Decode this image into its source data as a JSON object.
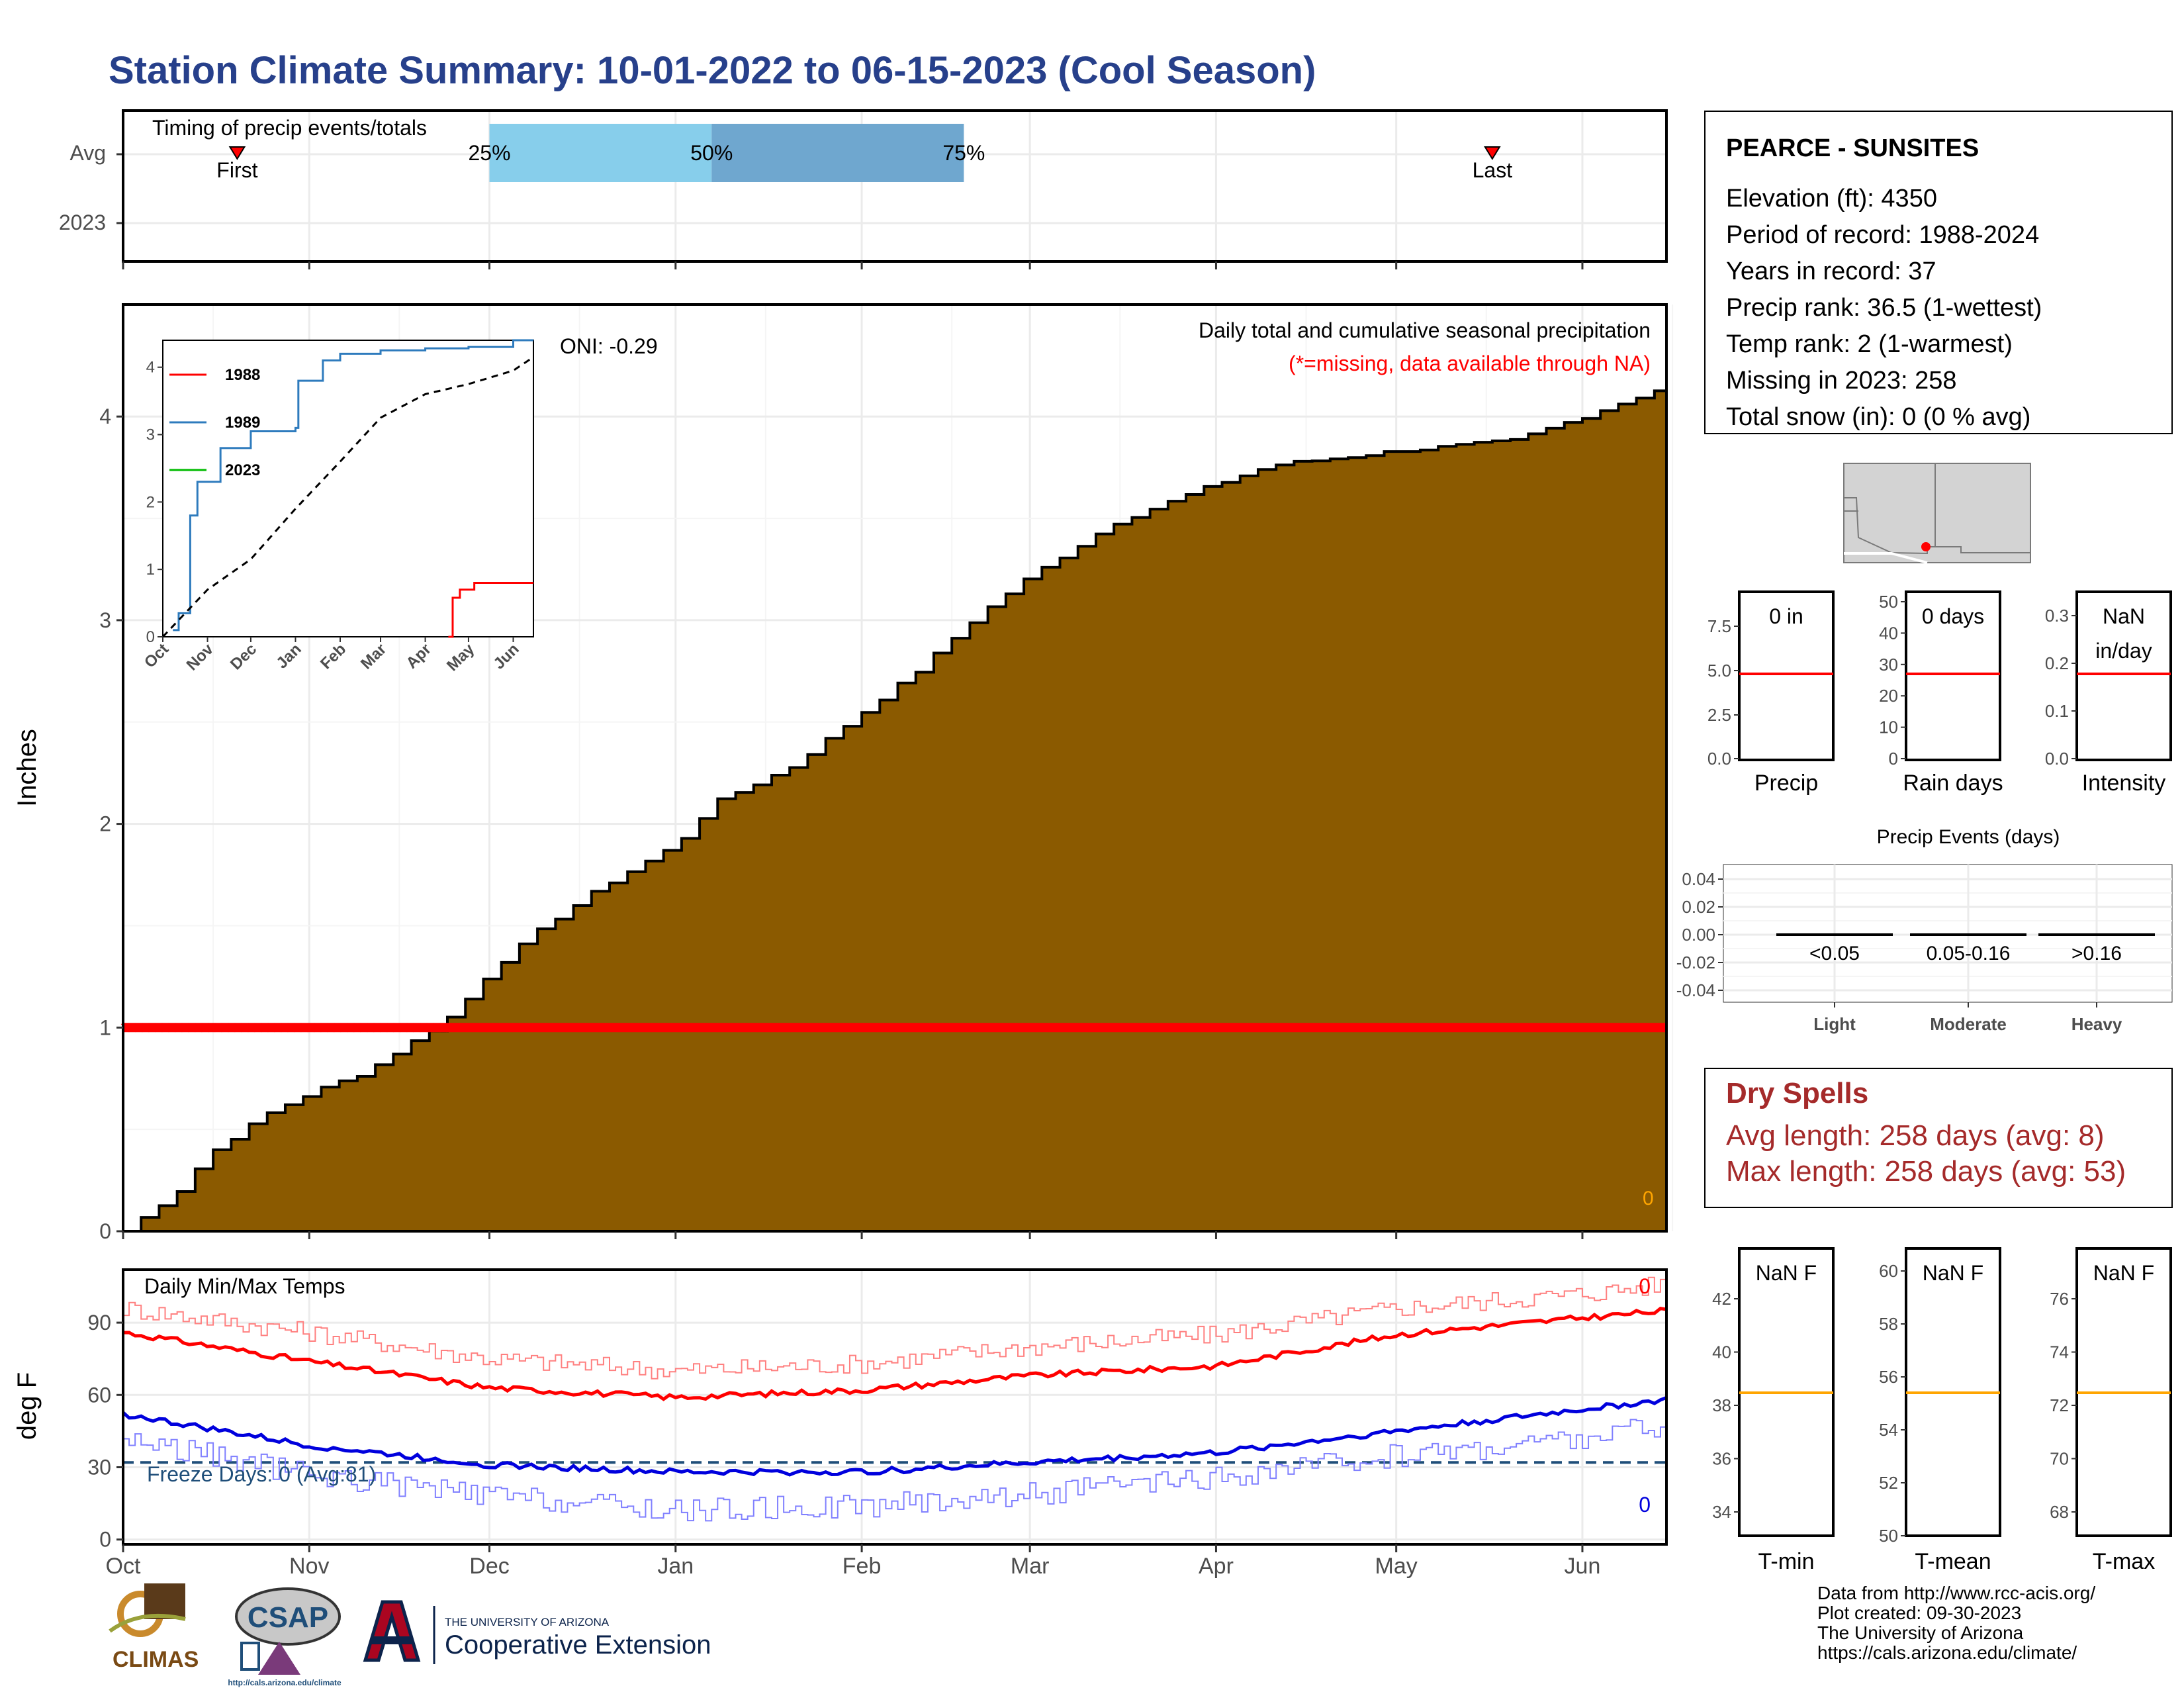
{
  "title": "Station Climate Summary: 10-01-2022 to 06-15-2023 (Cool Season)",
  "timing": {
    "title": "Timing of precip events/totals",
    "rows": [
      "Avg",
      "2023"
    ],
    "first_label": "First",
    "last_label": "Last",
    "q25_label": "25%",
    "q50_label": "50%",
    "q75_label": "75%",
    "first_date": "2022-10-20",
    "last_date": "2023-05-17",
    "q25_date": "2022-12-01",
    "q50_date": "2023-01-07",
    "q75_date": "2023-02-18"
  },
  "station": {
    "name": "PEARCE - SUNSITES",
    "lines": [
      "Elevation (ft): 4350",
      "Period of record: 1988-2024",
      "Years in record: 37",
      "Precip rank: 36.5 (1-wettest)",
      "Temp rank: 2 (1-warmest)",
      "Missing in 2023: 258",
      "Total snow (in): 0 (0 % avg)"
    ]
  },
  "precip_panel": {
    "title": "Daily total and cumulative seasonal precipitation",
    "missing_note": "(*=missing, data available through NA)",
    "oni_label": "ONI: -0.29",
    "ylabel": "Inches",
    "corner_value": "0",
    "y_ticks": [
      "0",
      "1",
      "2",
      "3",
      "4"
    ]
  },
  "inset": {
    "legend": [
      "1988",
      "1989",
      "2023"
    ],
    "y_ticks": [
      "0",
      "1",
      "2",
      "3",
      "4"
    ],
    "x_ticks": [
      "Oct",
      "Nov",
      "Dec",
      "Jan",
      "Feb",
      "Mar",
      "Apr",
      "May",
      "Jun"
    ]
  },
  "temp_panel": {
    "title": "Daily Min/Max Temps",
    "ylabel": "deg F",
    "freeze_label": "Freeze Days: 0 (Avg:81)",
    "max_corner": "0",
    "min_corner": "0",
    "y_ticks": [
      "0",
      "30",
      "60",
      "90"
    ]
  },
  "x_months": [
    "Oct",
    "Nov",
    "Dec",
    "Jan",
    "Feb",
    "Mar",
    "Apr",
    "May",
    "Jun"
  ],
  "gauges_precip": [
    {
      "label": "Precip",
      "top": "0 in",
      "ticks": [
        "0.0",
        "2.5",
        "5.0",
        "7.5"
      ]
    },
    {
      "label": "Rain days",
      "top": "0 days",
      "ticks": [
        "0",
        "10",
        "20",
        "30",
        "40",
        "50"
      ]
    },
    {
      "label": "Intensity",
      "top": "NaN",
      "top2": "in/day",
      "ticks": [
        "0.0",
        "0.1",
        "0.2",
        "0.3"
      ]
    }
  ],
  "events": {
    "title": "Precip Events (days)",
    "categories": [
      "Light",
      "Moderate",
      "Heavy"
    ],
    "ranges": [
      "<0.05",
      "0.05-0.16",
      ">0.16"
    ],
    "y_ticks": [
      "0.04",
      "0.02",
      "0.00",
      "-0.02",
      "-0.04"
    ]
  },
  "dry_spells": {
    "title": "Dry Spells",
    "avg": "Avg length: 258 days (avg: 8)",
    "max": "Max length: 258 days (avg: 53)"
  },
  "gauges_temp": [
    {
      "label": "T-min",
      "top": "NaN F",
      "ticks": [
        "34",
        "36",
        "38",
        "40",
        "42"
      ]
    },
    {
      "label": "T-mean",
      "top": "NaN F",
      "ticks": [
        "50",
        "52",
        "54",
        "56",
        "58",
        "60"
      ]
    },
    {
      "label": "T-max",
      "top": "NaN F",
      "ticks": [
        "68",
        "70",
        "72",
        "74",
        "76"
      ]
    }
  ],
  "logos": {
    "climas": "CLIMAS",
    "csap": "CSAP",
    "csap_url": "http://cals.arizona.edu/climate",
    "ua_line1": "THE UNIVERSITY OF ARIZONA",
    "ua_line2": "Cooperative Extension"
  },
  "credits": [
    "Data from http://www.rcc-acis.org/",
    "Plot created: 09-30-2023",
    "The University of Arizona",
    "https://cals.arizona.edu/climate/"
  ],
  "colors": {
    "title": "#27408b",
    "fill": "#8b5a00",
    "red": "#ff0000",
    "blue": "#0000dd",
    "q_light": "#87ceeb",
    "q_dark": "#6fa7cf",
    "orange": "#ffa500",
    "dry": "#a52a2a",
    "freeze": "#1f4e79"
  },
  "chart_data": [
    {
      "type": "area",
      "title": "Daily total and cumulative seasonal precipitation",
      "ylabel": "Inches",
      "ylim": [
        0,
        4.55
      ],
      "series": [
        {
          "name": "",
          "points": [
            [
              "2022-10-01",
              0.0
            ],
            [
              "2022-10-10",
              0.2
            ],
            [
              "2022-10-15",
              0.38
            ],
            [
              "2022-10-25",
              0.58
            ],
            [
              "2022-11-01",
              0.68
            ],
            [
              "2022-11-10",
              0.78
            ],
            [
              "2022-11-20",
              0.97
            ],
            [
              "2022-11-25",
              1.07
            ],
            [
              "2022-12-01",
              1.28
            ],
            [
              "2022-12-10",
              1.5
            ],
            [
              "2022-12-20",
              1.7
            ],
            [
              "2023-01-01",
              1.9
            ],
            [
              "2023-01-07",
              2.1
            ],
            [
              "2023-01-20",
              2.28
            ],
            [
              "2023-02-01",
              2.55
            ],
            [
              "2023-02-10",
              2.75
            ],
            [
              "2023-02-20",
              3.02
            ],
            [
              "2023-03-01",
              3.22
            ],
            [
              "2023-03-15",
              3.48
            ],
            [
              "2023-04-01",
              3.67
            ],
            [
              "2023-04-10",
              3.76
            ],
            [
              "2023-05-01",
              3.83
            ],
            [
              "2023-05-20",
              3.88
            ],
            [
              "2023-06-01",
              4.0
            ],
            [
              "2023-06-15",
              4.15
            ]
          ]
        }
      ]
    },
    {
      "type": "line",
      "legend": [
        "1988",
        "1989",
        "2023"
      ],
      "ylim": [
        0,
        4.4
      ],
      "series": [
        {
          "name": "1988",
          "points": [
            [
              "2023-04-17",
              0
            ],
            [
              "2023-04-20",
              0.58
            ],
            [
              "2023-04-25",
              0.7
            ],
            [
              "2023-05-05",
              0.8
            ],
            [
              "2023-06-15",
              0.8
            ]
          ]
        },
        {
          "name": "1989",
          "points": [
            [
              "2022-10-08",
              0.1
            ],
            [
              "2022-10-12",
              0.35
            ],
            [
              "2022-10-20",
              1.8
            ],
            [
              "2022-10-25",
              2.3
            ],
            [
              "2022-11-10",
              2.8
            ],
            [
              "2022-12-01",
              3.05
            ],
            [
              "2023-01-01",
              3.1
            ],
            [
              "2023-01-03",
              3.8
            ],
            [
              "2023-01-20",
              4.1
            ],
            [
              "2023-02-01",
              4.2
            ],
            [
              "2023-03-01",
              4.25
            ],
            [
              "2023-04-01",
              4.28
            ],
            [
              "2023-05-01",
              4.3
            ],
            [
              "2023-06-01",
              4.4
            ],
            [
              "2023-06-15",
              4.4
            ]
          ]
        },
        {
          "name": "",
          "points": [
            [
              "2022-10-01",
              0
            ],
            [
              "2022-11-01",
              0.7
            ],
            [
              "2022-12-01",
              1.15
            ],
            [
              "2023-01-01",
              1.9
            ],
            [
              "2023-02-01",
              2.6
            ],
            [
              "2023-03-01",
              3.25
            ],
            [
              "2023-04-01",
              3.6
            ],
            [
              "2023-05-01",
              3.75
            ],
            [
              "2023-06-01",
              3.95
            ],
            [
              "2023-06-15",
              4.15
            ]
          ]
        }
      ]
    },
    {
      "type": "line",
      "title": "Daily Min/Max Temps",
      "ylabel": "deg F",
      "ylim": [
        -2,
        112
      ],
      "series": [
        {
          "name": "",
          "points": [
            [
              "2022-10-01",
              86
            ],
            [
              "2022-11-01",
              74
            ],
            [
              "2022-12-01",
              63
            ],
            [
              "2023-01-01",
              59
            ],
            [
              "2023-02-01",
              62
            ],
            [
              "2023-03-01",
              68
            ],
            [
              "2023-04-01",
              72
            ],
            [
              "2023-05-01",
              85
            ],
            [
              "2023-06-01",
              92
            ],
            [
              "2023-06-15",
              95
            ]
          ]
        },
        {
          "name": "",
          "points": [
            [
              "2022-10-01",
              96
            ],
            [
              "2022-11-01",
              86
            ],
            [
              "2022-12-01",
              75
            ],
            [
              "2023-01-01",
              70
            ],
            [
              "2023-02-01",
              73
            ],
            [
              "2023-03-01",
              80
            ],
            [
              "2023-04-01",
              85
            ],
            [
              "2023-05-01",
              96
            ],
            [
              "2023-06-01",
              102
            ],
            [
              "2023-06-15",
              106
            ]
          ]
        },
        {
          "name": "",
          "points": [
            [
              "2022-10-01",
              52
            ],
            [
              "2022-11-01",
              39
            ],
            [
              "2022-12-01",
              31
            ],
            [
              "2023-01-01",
              28
            ],
            [
              "2023-02-01",
              28
            ],
            [
              "2023-03-01",
              32
            ],
            [
              "2023-04-01",
              36
            ],
            [
              "2023-05-01",
              45
            ],
            [
              "2023-06-01",
              54
            ],
            [
              "2023-06-15",
              58
            ]
          ]
        },
        {
          "name": "",
          "points": [
            [
              "2022-10-01",
              42
            ],
            [
              "2022-11-01",
              27
            ],
            [
              "2022-12-01",
              18
            ],
            [
              "2023-01-01",
              12
            ],
            [
              "2023-02-01",
              14
            ],
            [
              "2023-03-01",
              19
            ],
            [
              "2023-04-01",
              25
            ],
            [
              "2023-05-01",
              35
            ],
            [
              "2023-06-01",
              42
            ],
            [
              "2023-06-15",
              48
            ]
          ]
        }
      ]
    }
  ]
}
